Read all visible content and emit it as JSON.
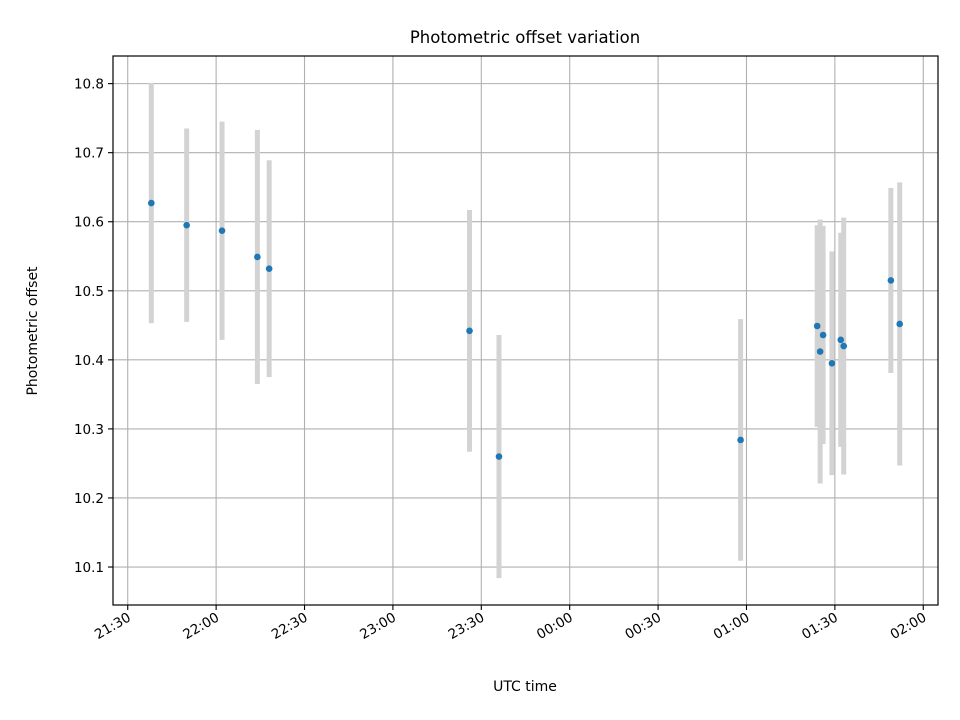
{
  "chart_data": {
    "type": "scatter",
    "title": "Photometric offset variation",
    "xlabel": "UTC time",
    "ylabel": "Photometric offset",
    "x_axis_type": "time",
    "x_start": "21:30",
    "xlim": [
      "21:25",
      "02:05"
    ],
    "x_ticks": [
      "21:30",
      "22:00",
      "22:30",
      "23:00",
      "23:30",
      "00:00",
      "00:30",
      "01:00",
      "01:30",
      "02:00"
    ],
    "ylim": [
      10.045,
      10.84
    ],
    "y_ticks": [
      10.1,
      10.2,
      10.3,
      10.4,
      10.5,
      10.6,
      10.7,
      10.8
    ],
    "grid": true,
    "marker_color": "#1f77b4",
    "errorbar_color": "#d3d3d3",
    "points": [
      {
        "x": "21:38",
        "y": 10.627,
        "err": 0.174
      },
      {
        "x": "21:50",
        "y": 10.595,
        "err": 0.14
      },
      {
        "x": "22:02",
        "y": 10.587,
        "err": 0.158
      },
      {
        "x": "22:14",
        "y": 10.549,
        "err": 0.184
      },
      {
        "x": "22:18",
        "y": 10.532,
        "err": 0.157
      },
      {
        "x": "23:26",
        "y": 10.442,
        "err": 0.175
      },
      {
        "x": "23:36",
        "y": 10.26,
        "err": 0.176
      },
      {
        "x": "00:58",
        "y": 10.284,
        "err": 0.175
      },
      {
        "x": "01:24",
        "y": 10.449,
        "err": 0.146
      },
      {
        "x": "01:25",
        "y": 10.412,
        "err": 0.191
      },
      {
        "x": "01:26",
        "y": 10.436,
        "err": 0.158
      },
      {
        "x": "01:29",
        "y": 10.395,
        "err": 0.162
      },
      {
        "x": "01:32",
        "y": 10.429,
        "err": 0.155
      },
      {
        "x": "01:33",
        "y": 10.42,
        "err": 0.186
      },
      {
        "x": "01:49",
        "y": 10.515,
        "err": 0.134
      },
      {
        "x": "01:52",
        "y": 10.452,
        "err": 0.205
      }
    ]
  }
}
